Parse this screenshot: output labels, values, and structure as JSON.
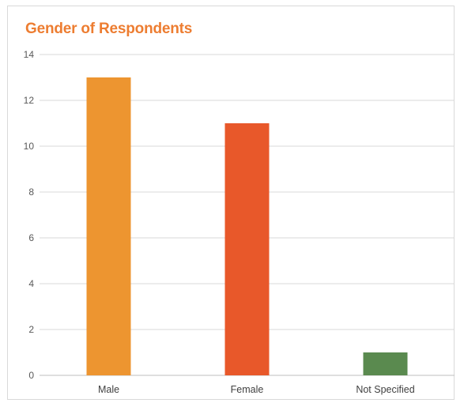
{
  "chart_data": {
    "type": "bar",
    "title": "Gender of Respondents",
    "categories": [
      "Male",
      "Female",
      "Not Specified"
    ],
    "values": [
      13,
      11,
      1
    ],
    "bar_colors": [
      "#ed9530",
      "#e8582a",
      "#5a8a4f"
    ],
    "ylim": [
      0,
      14
    ],
    "yticks": [
      "0",
      "2",
      "4",
      "6",
      "8",
      "10",
      "12",
      "14"
    ],
    "grid": true,
    "xlabel": "",
    "ylabel": ""
  }
}
